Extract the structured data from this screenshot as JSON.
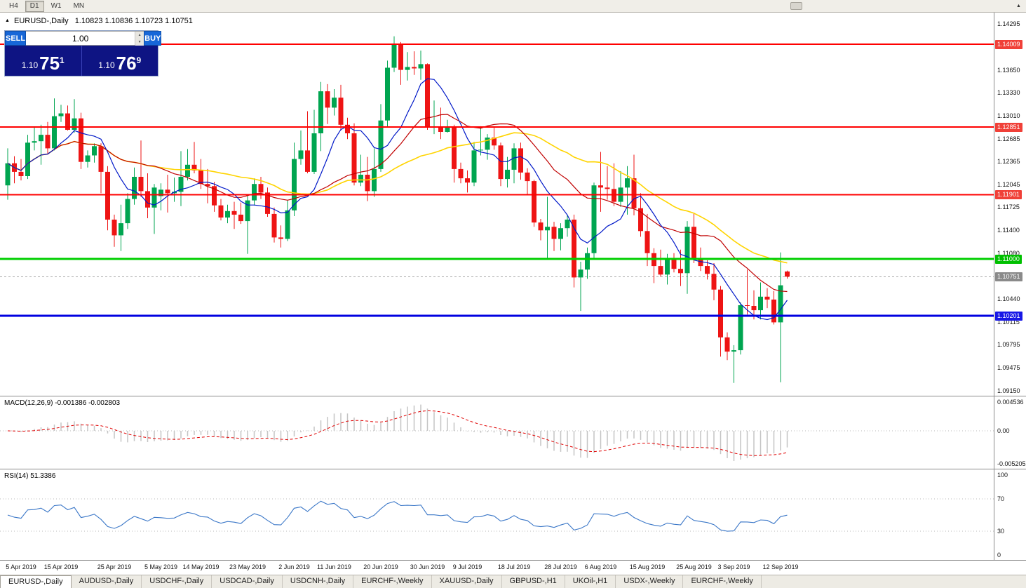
{
  "colors": {
    "bull": "#00A550",
    "bear": "#EE1414",
    "ma_fast": "#0018C8",
    "ma_mid": "#C00000",
    "ma_slow": "#FFD400",
    "bid_line": "#A8A8A8",
    "macd_bar": "#C4C4C4",
    "macd_signal": "#E00000",
    "rsi_line": "#3C78C8"
  },
  "toolbar": {
    "timeframes": [
      "H4",
      "D1",
      "W1",
      "MN"
    ],
    "active": "D1",
    "up_arrow": "▲"
  },
  "chart_header": {
    "collapse": "▲",
    "title": "EURUSD-,Daily",
    "ohlc": "1.10823 1.10836 1.10723 1.10751"
  },
  "trade_panel": {
    "sell_label": "SELL",
    "buy_label": "BUY",
    "volume": "1.00",
    "spinner_up": "▲",
    "spinner_down": "▼",
    "sell_price_prefix": "1.10",
    "sell_price_big": "75",
    "sell_price_sup": "1",
    "buy_price_prefix": "1.10",
    "buy_price_big": "76",
    "buy_price_sup": "9"
  },
  "price_axis": {
    "ticks": [
      "1.14295",
      "1.13650",
      "1.13330",
      "1.13010",
      "1.12685",
      "1.12365",
      "1.12045",
      "1.11725",
      "1.11400",
      "1.11080",
      "1.10440",
      "1.10115",
      "1.09795",
      "1.09475",
      "1.09150"
    ],
    "badges": [
      {
        "text": "1.14009",
        "color": "#F04038",
        "price": 1.14009
      },
      {
        "text": "1.12851",
        "color": "#F04038",
        "price": 1.12851
      },
      {
        "text": "1.11901",
        "color": "#F04038",
        "price": 1.11901
      },
      {
        "text": "1.11000",
        "color": "#00C000",
        "price": 1.11
      },
      {
        "text": "1.10751",
        "color": "#8A8A8A",
        "price": 1.10751
      },
      {
        "text": "1.10201",
        "color": "#1818E6",
        "price": 1.10201
      }
    ]
  },
  "levels": [
    {
      "price": 1.14009,
      "color": "#FF0000",
      "width": 2
    },
    {
      "price": 1.12851,
      "color": "#FF0000",
      "width": 2
    },
    {
      "price": 1.11901,
      "color": "#FF0000",
      "width": 2
    },
    {
      "price": 1.11,
      "color": "#00CF00",
      "width": 3
    },
    {
      "price": 1.10201,
      "color": "#0000E0",
      "width": 3
    }
  ],
  "chart_data": {
    "type": "candlestick",
    "symbol": "EURUSD-",
    "timeframe": "Daily",
    "bid": 1.10751,
    "price_range": [
      1.0915,
      1.14295
    ],
    "moving_averages": [
      {
        "name": "fast",
        "period": 8
      },
      {
        "name": "mid",
        "period": 20
      },
      {
        "name": "slow",
        "period": 34
      }
    ],
    "candles": [
      [
        1.1203,
        1.1255,
        1.1183,
        1.1234
      ],
      [
        1.1234,
        1.1244,
        1.1206,
        1.1222
      ],
      [
        1.1222,
        1.124,
        1.121,
        1.1216
      ],
      [
        1.1216,
        1.1274,
        1.1212,
        1.1263
      ],
      [
        1.1263,
        1.1285,
        1.1252,
        1.1265
      ],
      [
        1.1265,
        1.1288,
        1.1232,
        1.1274
      ],
      [
        1.1274,
        1.1292,
        1.1248,
        1.1255
      ],
      [
        1.1255,
        1.1325,
        1.1252,
        1.13
      ],
      [
        1.13,
        1.1316,
        1.1292,
        1.1304
      ],
      [
        1.1304,
        1.1315,
        1.128,
        1.1281
      ],
      [
        1.1281,
        1.1324,
        1.1277,
        1.1297
      ],
      [
        1.1297,
        1.1305,
        1.1226,
        1.1236
      ],
      [
        1.1236,
        1.1252,
        1.1228,
        1.1245
      ],
      [
        1.1245,
        1.1262,
        1.1235,
        1.1258
      ],
      [
        1.1258,
        1.1262,
        1.1192,
        1.1222
      ],
      [
        1.1222,
        1.123,
        1.114,
        1.1155
      ],
      [
        1.1155,
        1.1162,
        1.1117,
        1.1133
      ],
      [
        1.1133,
        1.1176,
        1.1111,
        1.115
      ],
      [
        1.115,
        1.1192,
        1.1142,
        1.1184
      ],
      [
        1.1184,
        1.1228,
        1.1176,
        1.1215
      ],
      [
        1.1215,
        1.1266,
        1.1187,
        1.1195
      ],
      [
        1.1195,
        1.122,
        1.1157,
        1.1172
      ],
      [
        1.1172,
        1.1205,
        1.1135,
        1.12
      ],
      [
        1.1188,
        1.1206,
        1.1168,
        1.1197
      ],
      [
        1.1197,
        1.1218,
        1.1165,
        1.1192
      ],
      [
        1.1192,
        1.1214,
        1.118,
        1.1194
      ],
      [
        1.1194,
        1.1251,
        1.1174,
        1.1215
      ],
      [
        1.1215,
        1.1254,
        1.121,
        1.1232
      ],
      [
        1.1232,
        1.1264,
        1.122,
        1.1224
      ],
      [
        1.1224,
        1.124,
        1.1198,
        1.1205
      ],
      [
        1.1205,
        1.1226,
        1.1178,
        1.1202
      ],
      [
        1.1202,
        1.1208,
        1.1166,
        1.1175
      ],
      [
        1.1175,
        1.1184,
        1.1154,
        1.1158
      ],
      [
        1.1158,
        1.1176,
        1.115,
        1.1167
      ],
      [
        1.1167,
        1.118,
        1.1142,
        1.1162
      ],
      [
        1.1162,
        1.1179,
        1.1149,
        1.1153
      ],
      [
        1.1153,
        1.1188,
        1.1107,
        1.1182
      ],
      [
        1.1182,
        1.1213,
        1.1175,
        1.1205
      ],
      [
        1.1205,
        1.1215,
        1.1184,
        1.1193
      ],
      [
        1.1193,
        1.12,
        1.1159,
        1.1163
      ],
      [
        1.1163,
        1.1172,
        1.1123,
        1.113
      ],
      [
        1.113,
        1.1147,
        1.1116,
        1.1128
      ],
      [
        1.1128,
        1.1182,
        1.1125,
        1.1168
      ],
      [
        1.1168,
        1.1263,
        1.116,
        1.124
      ],
      [
        1.124,
        1.128,
        1.1232,
        1.1252
      ],
      [
        1.1252,
        1.1307,
        1.122,
        1.1222
      ],
      [
        1.1222,
        1.1309,
        1.1219,
        1.1276
      ],
      [
        1.1276,
        1.1348,
        1.1251,
        1.1335
      ],
      [
        1.1335,
        1.1345,
        1.1289,
        1.1312
      ],
      [
        1.1312,
        1.1338,
        1.1301,
        1.1326
      ],
      [
        1.1326,
        1.1344,
        1.128,
        1.1288
      ],
      [
        1.1288,
        1.1298,
        1.1268,
        1.1276
      ],
      [
        1.1276,
        1.129,
        1.1203,
        1.1207
      ],
      [
        1.1207,
        1.1246,
        1.1202,
        1.1218
      ],
      [
        1.1218,
        1.1243,
        1.1181,
        1.1195
      ],
      [
        1.1195,
        1.1255,
        1.1187,
        1.1226
      ],
      [
        1.1226,
        1.1317,
        1.1222,
        1.1294
      ],
      [
        1.1294,
        1.1378,
        1.1285,
        1.1368
      ],
      [
        1.1368,
        1.1412,
        1.1362,
        1.14
      ],
      [
        1.14,
        1.1404,
        1.1344,
        1.1365
      ],
      [
        1.1365,
        1.139,
        1.135,
        1.1369
      ],
      [
        1.1369,
        1.1391,
        1.1358,
        1.1367
      ],
      [
        1.1367,
        1.1392,
        1.1351,
        1.1373
      ],
      [
        1.1373,
        1.1374,
        1.1281,
        1.1285
      ],
      [
        1.1285,
        1.1322,
        1.1275,
        1.1285
      ],
      [
        1.1285,
        1.1312,
        1.1268,
        1.1278
      ],
      [
        1.1278,
        1.1295,
        1.1277,
        1.1284
      ],
      [
        1.1284,
        1.1288,
        1.1207,
        1.1226
      ],
      [
        1.1226,
        1.1235,
        1.1206,
        1.1213
      ],
      [
        1.1213,
        1.1224,
        1.1193,
        1.1207
      ],
      [
        1.1207,
        1.1264,
        1.1202,
        1.1252
      ],
      [
        1.1252,
        1.1286,
        1.1245,
        1.1253
      ],
      [
        1.1253,
        1.1275,
        1.1239,
        1.127
      ],
      [
        1.127,
        1.1284,
        1.1253,
        1.1259
      ],
      [
        1.1259,
        1.1263,
        1.1202,
        1.1212
      ],
      [
        1.1212,
        1.1243,
        1.12,
        1.1225
      ],
      [
        1.1225,
        1.1262,
        1.1206,
        1.1255
      ],
      [
        1.1255,
        1.1263,
        1.1211,
        1.1221
      ],
      [
        1.1221,
        1.1227,
        1.1189,
        1.1209
      ],
      [
        1.1209,
        1.1211,
        1.1145,
        1.1151
      ],
      [
        1.1151,
        1.1156,
        1.1126,
        1.114
      ],
      [
        1.114,
        1.1187,
        1.1101,
        1.1145
      ],
      [
        1.1145,
        1.1152,
        1.1111,
        1.1128
      ],
      [
        1.1128,
        1.115,
        1.1112,
        1.1143
      ],
      [
        1.1143,
        1.1162,
        1.1131,
        1.1155
      ],
      [
        1.1155,
        1.1162,
        1.106,
        1.1074
      ],
      [
        1.1074,
        1.1096,
        1.1027,
        1.1085
      ],
      [
        1.1085,
        1.1116,
        1.1072,
        1.1108
      ],
      [
        1.1108,
        1.1207,
        1.1101,
        1.1203
      ],
      [
        1.1203,
        1.125,
        1.1166,
        1.12
      ],
      [
        1.12,
        1.123,
        1.1183,
        1.1198
      ],
      [
        1.1198,
        1.1234,
        1.1174,
        1.118
      ],
      [
        1.118,
        1.1223,
        1.1173,
        1.12
      ],
      [
        1.12,
        1.123,
        1.1162,
        1.1213
      ],
      [
        1.1213,
        1.1246,
        1.1161,
        1.1171
      ],
      [
        1.1171,
        1.1192,
        1.1131,
        1.1139
      ],
      [
        1.1139,
        1.1163,
        1.109,
        1.1108
      ],
      [
        1.1108,
        1.1115,
        1.1066,
        1.109
      ],
      [
        1.109,
        1.1113,
        1.1075,
        1.1078
      ],
      [
        1.1078,
        1.1107,
        1.1064,
        1.1099
      ],
      [
        1.1099,
        1.1108,
        1.1081,
        1.1086
      ],
      [
        1.1086,
        1.1113,
        1.1062,
        1.108
      ],
      [
        1.108,
        1.1153,
        1.1051,
        1.1145
      ],
      [
        1.1145,
        1.1164,
        1.1094,
        1.1101
      ],
      [
        1.1101,
        1.1116,
        1.1083,
        1.109
      ],
      [
        1.109,
        1.1098,
        1.1071,
        1.1079
      ],
      [
        1.1079,
        1.1094,
        1.1042,
        1.1057
      ],
      [
        1.1057,
        1.1062,
        1.0963,
        1.099
      ],
      [
        1.099,
        1.0997,
        1.0958,
        1.097
      ],
      [
        1.097,
        1.0979,
        1.0926,
        1.0972
      ],
      [
        1.0972,
        1.1039,
        1.0966,
        1.1035
      ],
      [
        1.1035,
        1.1085,
        1.1022,
        1.1034
      ],
      [
        1.1034,
        1.1056,
        1.1015,
        1.1028
      ],
      [
        1.1028,
        1.1067,
        1.1015,
        1.1047
      ],
      [
        1.1047,
        1.1059,
        1.1031,
        1.1043
      ],
      [
        1.1043,
        1.1055,
        1.1008,
        1.1011
      ],
      [
        1.1011,
        1.1109,
        1.0927,
        1.1063
      ],
      [
        1.10823,
        1.10836,
        1.10723,
        1.10751
      ]
    ]
  },
  "macd_panel": {
    "name": "MACD(12,26,9)",
    "values": "-0.001386 -0.002803",
    "axis_top": "0.004536",
    "axis_mid": "0.00",
    "axis_bottom": "-0.005205",
    "range": [
      -0.005205,
      0.004536
    ]
  },
  "rsi_panel": {
    "name": "RSI(14)",
    "value": "51.3386",
    "axis": [
      "100",
      "70",
      "30",
      "0"
    ],
    "levels": [
      70,
      30
    ]
  },
  "date_axis": [
    {
      "label": "5 Apr 2019",
      "i": 2
    },
    {
      "label": "15 Apr 2019",
      "i": 8
    },
    {
      "label": "25 Apr 2019",
      "i": 16
    },
    {
      "label": "5 May 2019",
      "i": 23
    },
    {
      "label": "14 May 2019",
      "i": 29
    },
    {
      "label": "23 May 2019",
      "i": 36
    },
    {
      "label": "2 Jun 2019",
      "i": 43
    },
    {
      "label": "11 Jun 2019",
      "i": 49
    },
    {
      "label": "20 Jun 2019",
      "i": 56
    },
    {
      "label": "30 Jun 2019",
      "i": 63
    },
    {
      "label": "9 Jul 2019",
      "i": 69
    },
    {
      "label": "18 Jul 2019",
      "i": 76
    },
    {
      "label": "28 Jul 2019",
      "i": 83
    },
    {
      "label": "6 Aug 2019",
      "i": 89
    },
    {
      "label": "15 Aug 2019",
      "i": 96
    },
    {
      "label": "25 Aug 2019",
      "i": 103
    },
    {
      "label": "3 Sep 2019",
      "i": 109
    },
    {
      "label": "12 Sep 2019",
      "i": 116
    }
  ],
  "tabs": [
    {
      "label": "EURUSD-,Daily",
      "active": true
    },
    {
      "label": "AUDUSD-,Daily",
      "active": false
    },
    {
      "label": "USDCHF-,Daily",
      "active": false
    },
    {
      "label": "USDCAD-,Daily",
      "active": false
    },
    {
      "label": "USDCNH-,Daily",
      "active": false
    },
    {
      "label": "EURCHF-,Weekly",
      "active": false
    },
    {
      "label": "XAUUSD-,Daily",
      "active": false
    },
    {
      "label": "GBPUSD-,H1",
      "active": false
    },
    {
      "label": "UKOil-,H1",
      "active": false
    },
    {
      "label": "USDX-,Weekly",
      "active": false
    },
    {
      "label": "EURCHF-,Weekly",
      "active": false
    }
  ]
}
